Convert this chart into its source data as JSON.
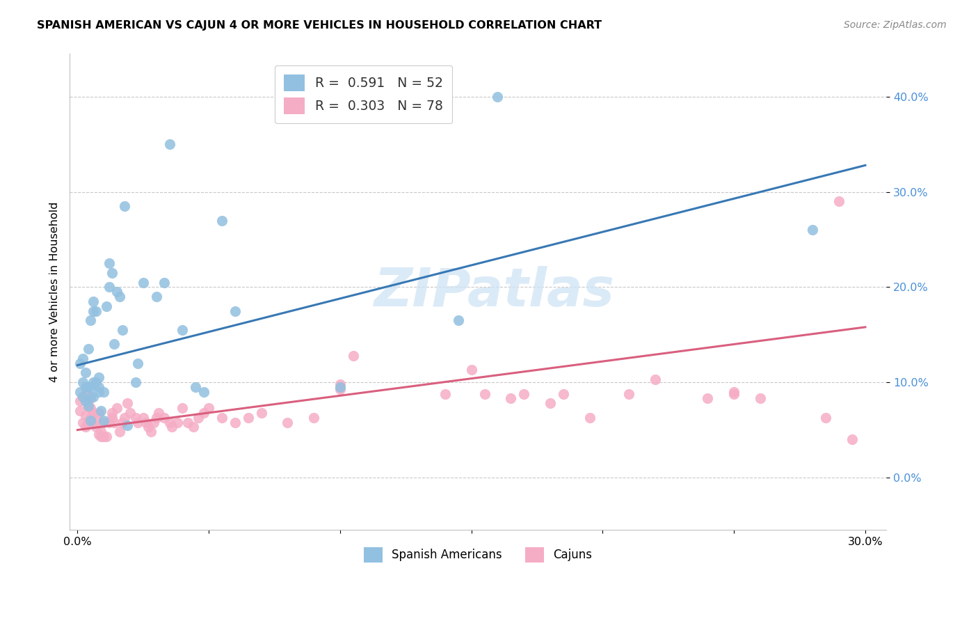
{
  "title": "SPANISH AMERICAN VS CAJUN 4 OR MORE VEHICLES IN HOUSEHOLD CORRELATION CHART",
  "source": "Source: ZipAtlas.com",
  "ylabel": "4 or more Vehicles in Household",
  "xlim_min": -0.003,
  "xlim_max": 0.308,
  "ylim_min": -0.055,
  "ylim_max": 0.445,
  "legend1_R": "0.591",
  "legend1_N": "52",
  "legend2_R": "0.303",
  "legend2_N": "78",
  "blue_scatter_color": "#92C0E0",
  "pink_scatter_color": "#F5ADC5",
  "blue_line_color": "#3878B4",
  "pink_line_color": "#D95F7F",
  "watermark_text": "ZIPatlas",
  "watermark_color": "#D0E4F5",
  "ytick_color": "#4A90D9",
  "yticks": [
    0.0,
    0.1,
    0.2,
    0.3,
    0.4
  ],
  "xticks": [
    0.0,
    0.05,
    0.1,
    0.15,
    0.2,
    0.25,
    0.3
  ],
  "blue_line_x0": 0.0,
  "blue_line_y0": 0.118,
  "blue_line_x1": 0.3,
  "blue_line_y1": 0.328,
  "pink_line_x0": 0.0,
  "pink_line_y0": 0.05,
  "pink_line_x1": 0.3,
  "pink_line_y1": 0.158,
  "sa_x": [
    0.001,
    0.002,
    0.002,
    0.003,
    0.003,
    0.004,
    0.004,
    0.004,
    0.005,
    0.005,
    0.005,
    0.006,
    0.006,
    0.006,
    0.007,
    0.007,
    0.008,
    0.008,
    0.009,
    0.01,
    0.01,
    0.011,
    0.012,
    0.012,
    0.013,
    0.014,
    0.015,
    0.016,
    0.017,
    0.018,
    0.019,
    0.022,
    0.023,
    0.025,
    0.03,
    0.033,
    0.035,
    0.04,
    0.045,
    0.048,
    0.055,
    0.06,
    0.1,
    0.145,
    0.16,
    0.28,
    0.001,
    0.002,
    0.003,
    0.005,
    0.006,
    0.008
  ],
  "sa_y": [
    0.09,
    0.1,
    0.125,
    0.08,
    0.11,
    0.075,
    0.095,
    0.135,
    0.06,
    0.085,
    0.165,
    0.085,
    0.1,
    0.175,
    0.1,
    0.175,
    0.09,
    0.105,
    0.07,
    0.06,
    0.09,
    0.18,
    0.2,
    0.225,
    0.215,
    0.14,
    0.195,
    0.19,
    0.155,
    0.285,
    0.055,
    0.1,
    0.12,
    0.205,
    0.19,
    0.205,
    0.35,
    0.155,
    0.095,
    0.09,
    0.27,
    0.175,
    0.095,
    0.165,
    0.4,
    0.26,
    0.12,
    0.085,
    0.095,
    0.095,
    0.185,
    0.095
  ],
  "cajun_x": [
    0.001,
    0.001,
    0.002,
    0.002,
    0.003,
    0.003,
    0.003,
    0.004,
    0.004,
    0.005,
    0.005,
    0.005,
    0.006,
    0.006,
    0.007,
    0.007,
    0.008,
    0.008,
    0.009,
    0.009,
    0.01,
    0.01,
    0.011,
    0.012,
    0.013,
    0.013,
    0.014,
    0.015,
    0.016,
    0.017,
    0.018,
    0.019,
    0.02,
    0.022,
    0.023,
    0.025,
    0.026,
    0.027,
    0.028,
    0.029,
    0.03,
    0.031,
    0.033,
    0.035,
    0.036,
    0.038,
    0.04,
    0.042,
    0.044,
    0.046,
    0.048,
    0.05,
    0.055,
    0.06,
    0.065,
    0.07,
    0.08,
    0.09,
    0.1,
    0.105,
    0.14,
    0.155,
    0.165,
    0.17,
    0.18,
    0.185,
    0.21,
    0.22,
    0.24,
    0.25,
    0.26,
    0.285,
    0.29,
    0.1,
    0.15,
    0.195,
    0.25,
    0.295
  ],
  "cajun_y": [
    0.07,
    0.08,
    0.058,
    0.085,
    0.053,
    0.065,
    0.088,
    0.058,
    0.075,
    0.063,
    0.073,
    0.083,
    0.058,
    0.068,
    0.053,
    0.06,
    0.045,
    0.068,
    0.043,
    0.048,
    0.043,
    0.058,
    0.043,
    0.058,
    0.063,
    0.068,
    0.058,
    0.073,
    0.048,
    0.058,
    0.063,
    0.078,
    0.068,
    0.063,
    0.058,
    0.063,
    0.058,
    0.053,
    0.048,
    0.058,
    0.063,
    0.068,
    0.063,
    0.058,
    0.053,
    0.058,
    0.073,
    0.058,
    0.053,
    0.063,
    0.068,
    0.073,
    0.063,
    0.058,
    0.063,
    0.068,
    0.058,
    0.063,
    0.098,
    0.128,
    0.088,
    0.088,
    0.083,
    0.088,
    0.078,
    0.088,
    0.088,
    0.103,
    0.083,
    0.088,
    0.083,
    0.063,
    0.29,
    0.093,
    0.113,
    0.063,
    0.09,
    0.04
  ]
}
